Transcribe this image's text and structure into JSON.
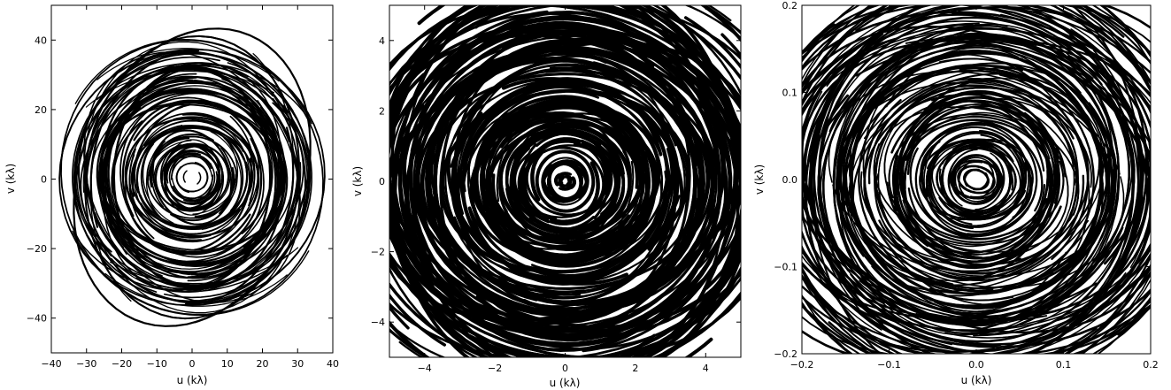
{
  "figure": {
    "panels": [
      {
        "xlabel": "u (kλ)",
        "ylabel": "v (kλ)"
      },
      {
        "xlabel": "u (kλ)",
        "ylabel": "v (kλ)"
      },
      {
        "xlabel": "u (kλ)",
        "ylabel": "v (kλ)"
      }
    ]
  },
  "chart_data": [
    {
      "type": "scatter",
      "title": "",
      "xlabel": "u (kλ)",
      "ylabel": "v (kλ)",
      "xlim": [
        -40,
        40
      ],
      "ylim": [
        -50,
        50
      ],
      "xticks": [
        -40,
        -30,
        -20,
        -10,
        0,
        10,
        20,
        30,
        40
      ],
      "yticks": [
        -40,
        -20,
        0,
        20,
        40
      ],
      "xtick_labels": [
        "−40",
        "−30",
        "−20",
        "−10",
        "0",
        "10",
        "20",
        "30",
        "40"
      ],
      "ytick_labels": [
        "−40",
        "−20",
        "0",
        "20",
        "40"
      ],
      "grid": false,
      "legend": "none",
      "series": [
        {
          "description": "uv-coverage tracks: elliptical arcs with point symmetry, densest within |u|<25, |v|<25",
          "extent_u": [
            -35,
            35
          ],
          "extent_v": [
            -40,
            41
          ]
        }
      ]
    },
    {
      "type": "scatter",
      "title": "",
      "xlabel": "u (kλ)",
      "ylabel": "v (kλ)",
      "xlim": [
        -5,
        5
      ],
      "ylim": [
        -5,
        5
      ],
      "xticks": [
        -4,
        -2,
        0,
        2,
        4
      ],
      "yticks": [
        -4,
        -2,
        0,
        2,
        4
      ],
      "xtick_labels": [
        "−4",
        "−2",
        "0",
        "2",
        "4"
      ],
      "ytick_labels": [
        "−4",
        "−2",
        "0",
        "2",
        "4"
      ],
      "grid": false,
      "legend": "none",
      "series": [
        {
          "description": "zoom of uv-coverage near origin: densely filled concentric elliptical tracks",
          "extent_u": [
            -5,
            5
          ],
          "extent_v": [
            -5,
            5
          ]
        }
      ]
    },
    {
      "type": "scatter",
      "title": "",
      "xlabel": "u (kλ)",
      "ylabel": "v (kλ)",
      "xlim": [
        -0.2,
        0.2
      ],
      "ylim": [
        -0.2,
        0.2
      ],
      "xticks": [
        -0.2,
        -0.1,
        0.0,
        0.1,
        0.2
      ],
      "yticks": [
        -0.2,
        -0.1,
        0.0,
        0.1,
        0.2
      ],
      "xtick_labels": [
        "−0.2",
        "−0.1",
        "0.0",
        "0.1",
        "0.2"
      ],
      "ytick_labels": [
        "−0.2",
        "−0.1",
        "0.0",
        "0.1",
        "0.2"
      ],
      "grid": false,
      "legend": "none",
      "series": [
        {
          "description": "further zoom near origin: many crossing elliptical tracks with a small hole at the center",
          "extent_u": [
            -0.2,
            0.2
          ],
          "extent_v": [
            -0.2,
            0.2
          ]
        }
      ]
    }
  ]
}
